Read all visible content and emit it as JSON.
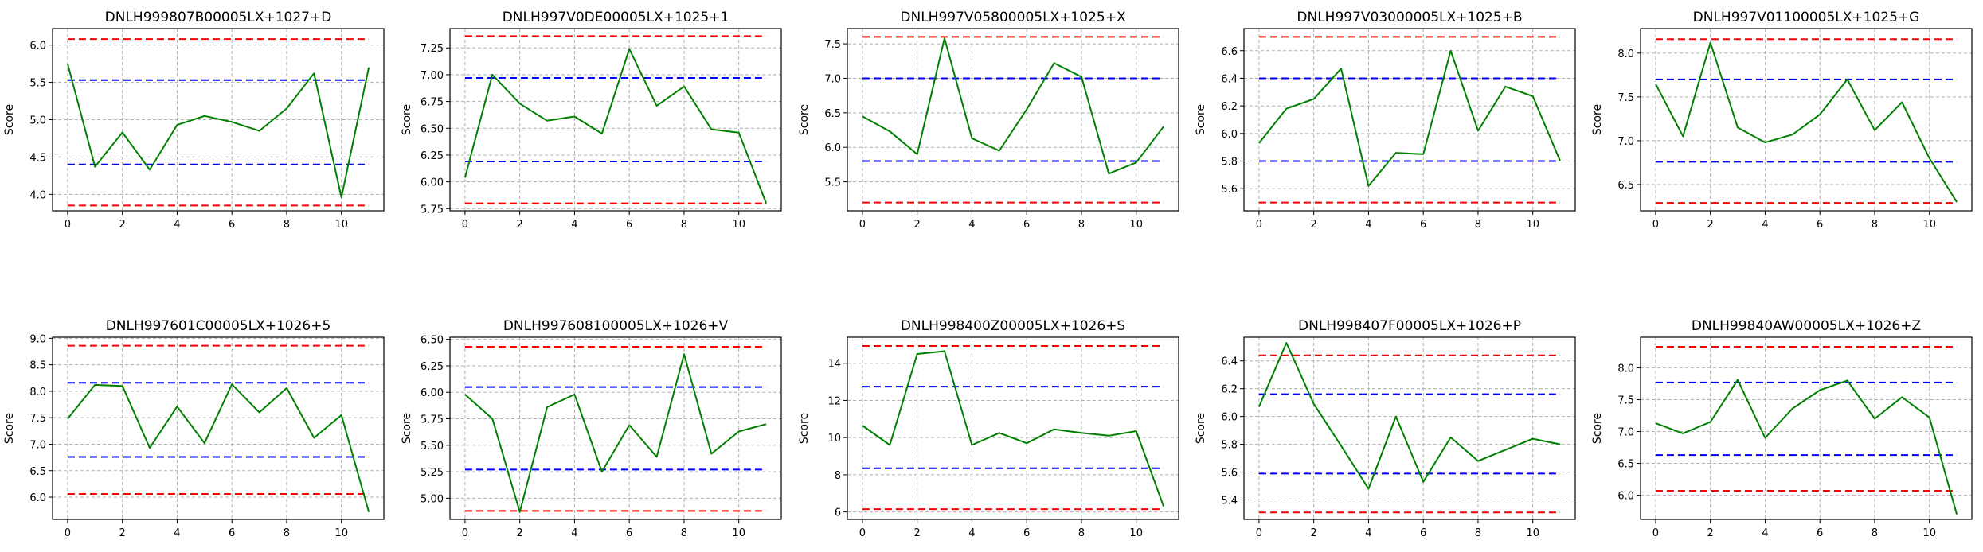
{
  "figure": {
    "background": "#ffffff"
  },
  "style": {
    "line_color": "#008000",
    "outer_limit_color": "#ff0000",
    "inner_limit_color": "#0000ff",
    "grid_color": "#b0b0b0"
  },
  "chart_data": [
    {
      "type": "line",
      "title": "DNLH999807B00005LX+1027+D",
      "ylabel": "Score",
      "xlim": [
        -0.55,
        11.55
      ],
      "ylim": [
        3.78,
        6.22
      ],
      "xticks": [
        0,
        2,
        4,
        6,
        8,
        10
      ],
      "xtick_labels": [
        "0",
        "2",
        "4",
        "6",
        "8",
        "10"
      ],
      "yticks": [
        4.0,
        4.5,
        5.0,
        5.5,
        6.0
      ],
      "ytick_labels": [
        "4.0",
        "4.5",
        "5.0",
        "5.5",
        "6.0"
      ],
      "x": [
        0,
        1,
        2,
        3,
        4,
        5,
        6,
        7,
        8,
        9,
        10,
        11
      ],
      "values": [
        5.75,
        4.37,
        4.83,
        4.33,
        4.93,
        5.05,
        4.97,
        4.85,
        5.15,
        5.62,
        3.96,
        5.7
      ],
      "limits": {
        "outer": [
          3.85,
          6.08
        ],
        "inner": [
          4.4,
          5.53
        ]
      },
      "grid": true
    },
    {
      "type": "line",
      "title": "DNLH997V0DE00005LX+1025+1",
      "ylabel": "Score",
      "xlim": [
        -0.55,
        11.55
      ],
      "ylim": [
        5.73,
        7.43
      ],
      "xticks": [
        0,
        2,
        4,
        6,
        8,
        10
      ],
      "xtick_labels": [
        "0",
        "2",
        "4",
        "6",
        "8",
        "10"
      ],
      "yticks": [
        5.75,
        6.0,
        6.25,
        6.5,
        6.75,
        7.0,
        7.25
      ],
      "ytick_labels": [
        "5.75",
        "6.00",
        "6.25",
        "6.50",
        "6.75",
        "7.00",
        "7.25"
      ],
      "x": [
        0,
        1,
        2,
        3,
        4,
        5,
        6,
        7,
        8,
        9,
        10,
        11
      ],
      "values": [
        6.04,
        7.0,
        6.73,
        6.57,
        6.61,
        6.45,
        7.24,
        6.71,
        6.89,
        6.49,
        6.46,
        5.8
      ],
      "limits": {
        "outer": [
          5.8,
          7.36
        ],
        "inner": [
          6.19,
          6.97
        ]
      },
      "grid": true
    },
    {
      "type": "line",
      "title": "DNLH997V05800005LX+1025+X",
      "ylabel": "Score",
      "xlim": [
        -0.55,
        11.55
      ],
      "ylim": [
        5.08,
        7.72
      ],
      "xticks": [
        0,
        2,
        4,
        6,
        8,
        10
      ],
      "xtick_labels": [
        "0",
        "2",
        "4",
        "6",
        "8",
        "10"
      ],
      "yticks": [
        5.5,
        6.0,
        6.5,
        7.0,
        7.5
      ],
      "ytick_labels": [
        "5.5",
        "6.0",
        "6.5",
        "7.0",
        "7.5"
      ],
      "x": [
        0,
        1,
        2,
        3,
        4,
        5,
        6,
        7,
        8,
        9,
        10,
        11
      ],
      "values": [
        6.45,
        6.23,
        5.9,
        7.58,
        6.13,
        5.95,
        6.55,
        7.22,
        7.02,
        5.62,
        5.78,
        6.3
      ],
      "limits": {
        "outer": [
          5.2,
          7.6
        ],
        "inner": [
          5.8,
          7.0
        ]
      },
      "grid": true
    },
    {
      "type": "line",
      "title": "DNLH997V03000005LX+1025+B",
      "ylabel": "Score",
      "xlim": [
        -0.55,
        11.55
      ],
      "ylim": [
        5.44,
        6.76
      ],
      "xticks": [
        0,
        2,
        4,
        6,
        8,
        10
      ],
      "xtick_labels": [
        "0",
        "2",
        "4",
        "6",
        "8",
        "10"
      ],
      "yticks": [
        5.6,
        5.8,
        6.0,
        6.2,
        6.4,
        6.6
      ],
      "ytick_labels": [
        "5.6",
        "5.8",
        "6.0",
        "6.2",
        "6.4",
        "6.6"
      ],
      "x": [
        0,
        1,
        2,
        3,
        4,
        5,
        6,
        7,
        8,
        9,
        10,
        11
      ],
      "values": [
        5.93,
        6.18,
        6.25,
        6.47,
        5.62,
        5.86,
        5.85,
        6.6,
        6.02,
        6.34,
        6.27,
        5.8
      ],
      "limits": {
        "outer": [
          5.5,
          6.7
        ],
        "inner": [
          5.8,
          6.4
        ]
      },
      "grid": true
    },
    {
      "type": "line",
      "title": "DNLH997V01100005LX+1025+G",
      "ylabel": "Score",
      "xlim": [
        -0.55,
        11.55
      ],
      "ylim": [
        6.2,
        8.28
      ],
      "xticks": [
        0,
        2,
        4,
        6,
        8,
        10
      ],
      "xtick_labels": [
        "0",
        "2",
        "4",
        "6",
        "8",
        "10"
      ],
      "yticks": [
        6.5,
        7.0,
        7.5,
        8.0
      ],
      "ytick_labels": [
        "6.5",
        "7.0",
        "7.5",
        "8.0"
      ],
      "x": [
        0,
        1,
        2,
        3,
        4,
        5,
        6,
        7,
        8,
        9,
        10,
        11
      ],
      "values": [
        7.65,
        7.05,
        8.12,
        7.15,
        6.98,
        7.07,
        7.3,
        7.7,
        7.12,
        7.44,
        6.8,
        6.3
      ],
      "limits": {
        "outer": [
          6.29,
          8.16
        ],
        "inner": [
          6.76,
          7.7
        ]
      },
      "grid": true
    },
    {
      "type": "line",
      "title": "DNLH997601C00005LX+1026+5",
      "ylabel": "Score",
      "xlim": [
        -0.55,
        11.55
      ],
      "ylim": [
        5.58,
        9.02
      ],
      "xticks": [
        0,
        2,
        4,
        6,
        8,
        10
      ],
      "xtick_labels": [
        "0",
        "2",
        "4",
        "6",
        "8",
        "10"
      ],
      "yticks": [
        6.0,
        6.5,
        7.0,
        7.5,
        8.0,
        8.5,
        9.0
      ],
      "ytick_labels": [
        "6.0",
        "6.5",
        "7.0",
        "7.5",
        "8.0",
        "8.5",
        "9.0"
      ],
      "x": [
        0,
        1,
        2,
        3,
        4,
        5,
        6,
        7,
        8,
        9,
        10,
        11
      ],
      "values": [
        7.48,
        8.12,
        8.1,
        6.93,
        7.71,
        7.02,
        8.13,
        7.6,
        8.06,
        7.12,
        7.55,
        5.72
      ],
      "limits": {
        "outer": [
          6.06,
          8.86
        ],
        "inner": [
          6.76,
          8.16
        ]
      },
      "grid": true
    },
    {
      "type": "line",
      "title": "DNLH997608100005LX+1026+V",
      "ylabel": "Score",
      "xlim": [
        -0.55,
        11.55
      ],
      "ylim": [
        4.8,
        6.52
      ],
      "xticks": [
        0,
        2,
        4,
        6,
        8,
        10
      ],
      "xtick_labels": [
        "0",
        "2",
        "4",
        "6",
        "8",
        "10"
      ],
      "yticks": [
        5.0,
        5.25,
        5.5,
        5.75,
        6.0,
        6.25,
        6.5
      ],
      "ytick_labels": [
        "5.00",
        "5.25",
        "5.50",
        "5.75",
        "6.00",
        "6.25",
        "6.50"
      ],
      "x": [
        0,
        1,
        2,
        3,
        4,
        5,
        6,
        7,
        8,
        9,
        10,
        11
      ],
      "values": [
        5.98,
        5.75,
        4.87,
        5.86,
        5.98,
        5.25,
        5.69,
        5.39,
        6.36,
        5.42,
        5.63,
        5.7
      ],
      "limits": {
        "outer": [
          4.88,
          6.43
        ],
        "inner": [
          5.27,
          6.05
        ]
      },
      "grid": true
    },
    {
      "type": "line",
      "title": "DNLH998400Z00005LX+1026+S",
      "ylabel": "Score",
      "xlim": [
        -0.55,
        11.55
      ],
      "ylim": [
        5.6,
        15.4
      ],
      "xticks": [
        0,
        2,
        4,
        6,
        8,
        10
      ],
      "xtick_labels": [
        "0",
        "2",
        "4",
        "6",
        "8",
        "10"
      ],
      "yticks": [
        6,
        8,
        10,
        12,
        14
      ],
      "ytick_labels": [
        "6",
        "8",
        "10",
        "12",
        "14"
      ],
      "x": [
        0,
        1,
        2,
        3,
        4,
        5,
        6,
        7,
        8,
        9,
        10,
        11
      ],
      "values": [
        10.65,
        9.6,
        14.5,
        14.65,
        9.6,
        10.25,
        9.7,
        10.45,
        10.25,
        10.1,
        10.35,
        6.3
      ],
      "limits": {
        "outer": [
          6.15,
          14.93
        ],
        "inner": [
          8.35,
          12.74
        ]
      },
      "grid": true
    },
    {
      "type": "line",
      "title": "DNLH998407F00005LX+1026+P",
      "ylabel": "Score",
      "xlim": [
        -0.55,
        11.55
      ],
      "ylim": [
        5.26,
        6.57
      ],
      "xticks": [
        0,
        2,
        4,
        6,
        8,
        10
      ],
      "xtick_labels": [
        "0",
        "2",
        "4",
        "6",
        "8",
        "10"
      ],
      "yticks": [
        5.4,
        5.6,
        5.8,
        6.0,
        6.2,
        6.4
      ],
      "ytick_labels": [
        "5.4",
        "5.6",
        "5.8",
        "6.0",
        "6.2",
        "6.4"
      ],
      "x": [
        0,
        1,
        2,
        3,
        4,
        5,
        6,
        7,
        8,
        9,
        10,
        11
      ],
      "values": [
        6.07,
        6.53,
        6.09,
        5.79,
        5.48,
        6.0,
        5.53,
        5.85,
        5.68,
        5.76,
        5.84,
        5.8
      ],
      "limits": {
        "outer": [
          5.31,
          6.44
        ],
        "inner": [
          5.59,
          6.16
        ]
      },
      "grid": true
    },
    {
      "type": "line",
      "title": "DNLH99840AW00005LX+1026+Z",
      "ylabel": "Score",
      "xlim": [
        -0.55,
        11.55
      ],
      "ylim": [
        5.62,
        8.48
      ],
      "xticks": [
        0,
        2,
        4,
        6,
        8,
        10
      ],
      "xtick_labels": [
        "0",
        "2",
        "4",
        "6",
        "8",
        "10"
      ],
      "yticks": [
        6.0,
        6.5,
        7.0,
        7.5,
        8.0
      ],
      "ytick_labels": [
        "6.0",
        "6.5",
        "7.0",
        "7.5",
        "8.0"
      ],
      "x": [
        0,
        1,
        2,
        3,
        4,
        5,
        6,
        7,
        8,
        9,
        10,
        11
      ],
      "values": [
        7.13,
        6.97,
        7.15,
        7.81,
        6.9,
        7.36,
        7.65,
        7.8,
        7.2,
        7.54,
        7.22,
        5.7
      ],
      "limits": {
        "outer": [
          6.07,
          8.33
        ],
        "inner": [
          6.63,
          7.77
        ]
      },
      "grid": true
    }
  ]
}
